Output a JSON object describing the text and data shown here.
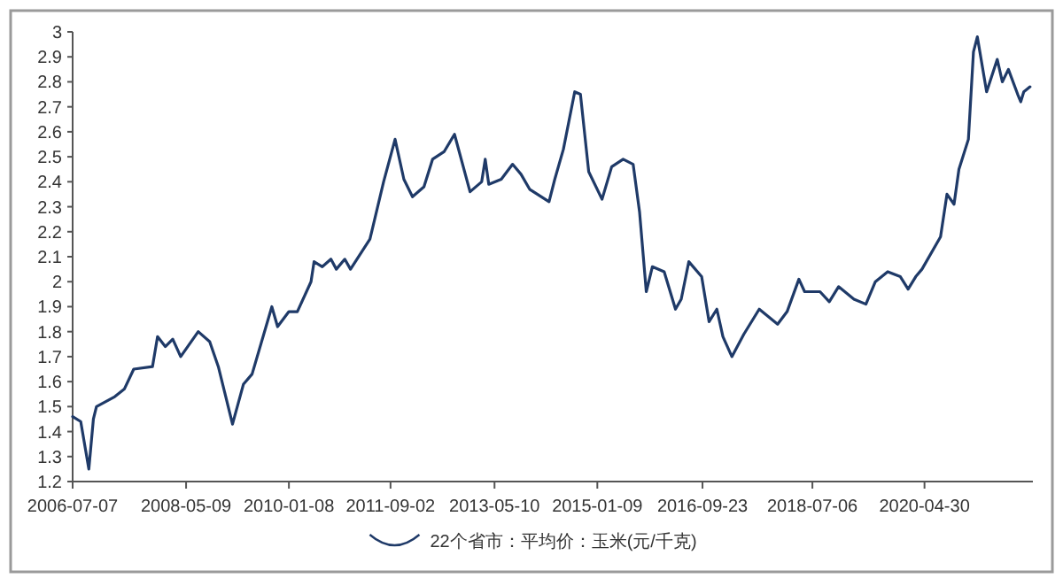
{
  "chart_data": {
    "type": "line",
    "legend": "bottom",
    "grid": false,
    "xlim": [
      "2006-07-07",
      "2022-02-01"
    ],
    "xticks": [
      {
        "value": "2006-07-07",
        "label": "2006-07-07"
      },
      {
        "value": "2008-05-09",
        "label": "2008-05-09"
      },
      {
        "value": "2010-01-08",
        "label": "2010-01-08"
      },
      {
        "value": "2011-09-02",
        "label": "2011-09-02"
      },
      {
        "value": "2013-05-10",
        "label": "2013-05-10"
      },
      {
        "value": "2015-01-09",
        "label": "2015-01-09"
      },
      {
        "value": "2016-09-23",
        "label": "2016-09-23"
      },
      {
        "value": "2018-07-06",
        "label": "2018-07-06"
      },
      {
        "value": "2020-04-30",
        "label": "2020-04-30"
      }
    ],
    "ylim": [
      1.2,
      3
    ],
    "yticks": [
      1.2,
      1.3,
      1.4,
      1.5,
      1.6,
      1.7,
      1.8,
      1.9,
      2,
      2.1,
      2.2,
      2.3,
      2.4,
      2.5,
      2.6,
      2.7,
      2.8,
      2.9,
      3
    ],
    "x": [
      "2006-07-07",
      "2006-08-24",
      "2006-10-11",
      "2006-11-07",
      "2006-11-25",
      "2007-03-14",
      "2007-05-09",
      "2007-07-04",
      "2007-10-23",
      "2007-11-22",
      "2008-01-07",
      "2008-02-20",
      "2008-04-07",
      "2008-07-20",
      "2008-09-26",
      "2008-11-16",
      "2009-02-08",
      "2009-04-14",
      "2009-06-04",
      "2009-09-29",
      "2009-11-02",
      "2010-01-08",
      "2010-02-27",
      "2010-05-19",
      "2010-06-06",
      "2010-07-25",
      "2010-09-14",
      "2010-10-16",
      "2010-12-05",
      "2011-01-08",
      "2011-05-03",
      "2011-07-23",
      "2011-09-29",
      "2011-11-20",
      "2012-01-10",
      "2012-03-18",
      "2012-05-08",
      "2012-07-15",
      "2012-09-15",
      "2012-12-16",
      "2013-02-23",
      "2013-03-16",
      "2013-04-06",
      "2013-06-19",
      "2013-08-25",
      "2013-10-14",
      "2013-12-04",
      "2014-03-29",
      "2014-05-02",
      "2014-06-22",
      "2014-08-28",
      "2014-10-01",
      "2014-11-19",
      "2015-02-06",
      "2015-04-04",
      "2015-06-11",
      "2015-08-09",
      "2015-09-16",
      "2015-10-26",
      "2015-12-01",
      "2016-02-09",
      "2016-04-16",
      "2016-05-20",
      "2016-07-04",
      "2016-09-18",
      "2016-11-01",
      "2016-12-17",
      "2017-01-22",
      "2017-03-16",
      "2017-05-26",
      "2017-08-25",
      "2017-12-12",
      "2018-02-06",
      "2018-04-17",
      "2018-05-21",
      "2018-08-20",
      "2018-10-14",
      "2018-12-08",
      "2019-03-09",
      "2019-05-19",
      "2019-07-14",
      "2019-09-25",
      "2019-12-09",
      "2020-01-24",
      "2020-03-09",
      "2020-04-15",
      "2020-08-03",
      "2020-09-10",
      "2020-10-22",
      "2020-11-20",
      "2021-01-15",
      "2021-02-14",
      "2021-03-09",
      "2021-05-03",
      "2021-07-05",
      "2021-08-04",
      "2021-09-09",
      "2021-11-03",
      "2021-11-21",
      "2021-12-09",
      "2022-01-15"
    ],
    "series": [
      {
        "name": "22个省市：平均价：玉米(元/千克)",
        "color": "#1f3a68",
        "values": [
          1.46,
          1.44,
          1.25,
          1.45,
          1.5,
          1.54,
          1.57,
          1.65,
          1.66,
          1.78,
          1.74,
          1.77,
          1.7,
          1.8,
          1.76,
          1.66,
          1.43,
          1.59,
          1.63,
          1.9,
          1.82,
          1.88,
          1.88,
          2.0,
          2.08,
          2.06,
          2.09,
          2.05,
          2.09,
          2.05,
          2.17,
          2.4,
          2.57,
          2.41,
          2.34,
          2.38,
          2.49,
          2.52,
          2.59,
          2.36,
          2.4,
          2.49,
          2.39,
          2.41,
          2.47,
          2.43,
          2.37,
          2.32,
          2.41,
          2.53,
          2.76,
          2.75,
          2.44,
          2.33,
          2.46,
          2.49,
          2.47,
          2.28,
          1.96,
          2.06,
          2.04,
          1.89,
          1.93,
          2.08,
          2.02,
          1.84,
          1.89,
          1.78,
          1.7,
          1.79,
          1.89,
          1.83,
          1.88,
          2.01,
          1.96,
          1.96,
          1.92,
          1.98,
          1.93,
          1.91,
          2.0,
          2.04,
          2.02,
          1.97,
          2.02,
          2.05,
          2.18,
          2.35,
          2.31,
          2.45,
          2.57,
          2.92,
          2.98,
          2.76,
          2.89,
          2.8,
          2.85,
          2.75,
          2.72,
          2.76,
          2.78
        ]
      }
    ]
  }
}
